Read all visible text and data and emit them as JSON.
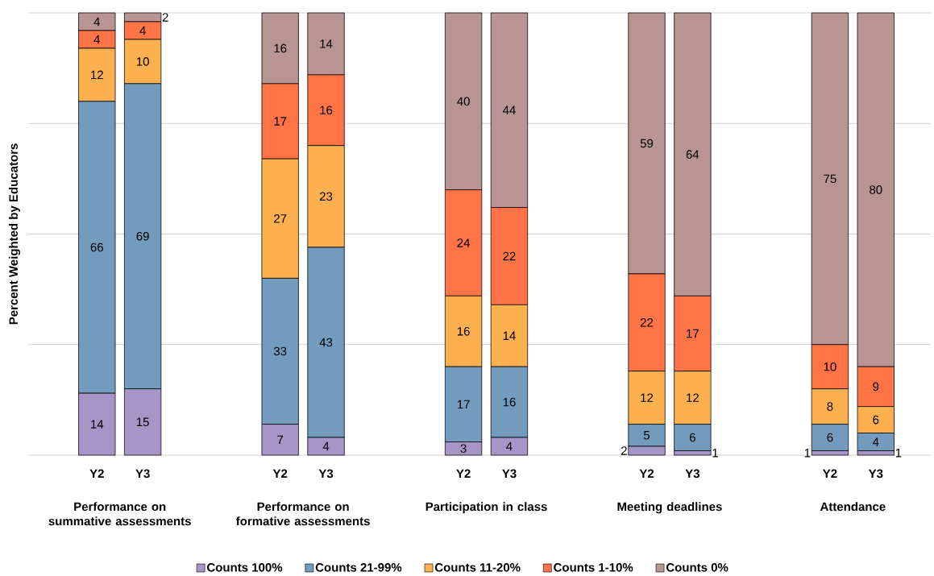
{
  "chart_data": {
    "type": "bar",
    "stacked": true,
    "ylabel": "Percent Weighted by Educators",
    "categories": [
      "Y2",
      "Y3",
      null,
      null,
      "Y2",
      "Y3",
      null,
      null,
      "Y2",
      "Y3",
      null,
      null,
      "Y2",
      "Y3",
      null,
      null,
      "Y2",
      "Y3"
    ],
    "series": [
      {
        "name": "Counts 100%",
        "color": "#a696c8",
        "values": [
          14,
          15,
          null,
          null,
          7,
          4,
          null,
          null,
          3,
          4,
          null,
          null,
          2,
          1,
          null,
          null,
          1,
          1
        ]
      },
      {
        "name": "Counts 21-99%",
        "color": "#729bbd",
        "values": [
          66,
          69,
          null,
          null,
          33,
          43,
          null,
          null,
          17,
          16,
          null,
          null,
          5,
          6,
          null,
          null,
          6,
          4
        ]
      },
      {
        "name": "Counts 11-20%",
        "color": "#fdb050",
        "values": [
          12,
          10,
          null,
          null,
          27,
          23,
          null,
          null,
          16,
          14,
          null,
          null,
          12,
          12,
          null,
          null,
          8,
          6
        ]
      },
      {
        "name": "Counts 1-10%",
        "color": "#fe7447",
        "values": [
          4,
          4,
          null,
          null,
          17,
          16,
          null,
          null,
          24,
          22,
          null,
          null,
          22,
          17,
          null,
          null,
          10,
          9
        ]
      },
      {
        "name": "Counts 0%",
        "color": "#b89493",
        "values": [
          4,
          2,
          null,
          null,
          16,
          14,
          null,
          null,
          40,
          44,
          null,
          null,
          59,
          64,
          null,
          null,
          75,
          80
        ]
      }
    ],
    "annotations": [
      "Performance on summative assessments",
      "Performance on formative assessments",
      "Participation in class",
      "Meeting deadlines",
      "Attendance"
    ],
    "ylim": [
      0,
      100
    ],
    "yticks": [
      0,
      25,
      50,
      75,
      100
    ],
    "grid": "y",
    "legend": "bottom",
    "tick_labels": "x",
    "data_labels": true
  }
}
